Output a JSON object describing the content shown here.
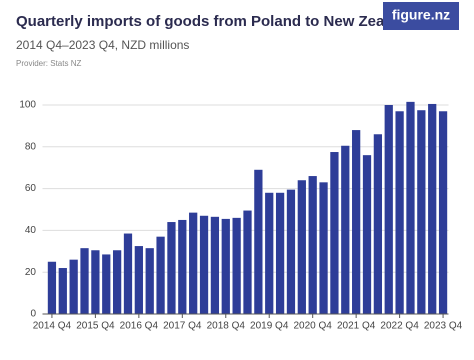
{
  "logo": "figure.nz",
  "chart_data": {
    "type": "bar",
    "title": "Quarterly imports of goods from Poland to New Zealand",
    "subtitle": "2014 Q4–2023 Q4, NZD millions",
    "provider": "Provider: Stats NZ",
    "categories": [
      "2014 Q4",
      null,
      null,
      null,
      "2015 Q4",
      null,
      null,
      null,
      "2016 Q4",
      null,
      null,
      null,
      "2017 Q4",
      null,
      null,
      null,
      "2018 Q4",
      null,
      null,
      null,
      "2019 Q4",
      null,
      null,
      null,
      "2020 Q4",
      null,
      null,
      null,
      "2021 Q4",
      null,
      null,
      null,
      "2022 Q4",
      null,
      null,
      null,
      "2023 Q4"
    ],
    "values": [
      25,
      22,
      26,
      31.5,
      30.5,
      28.5,
      30.5,
      38.5,
      32.5,
      31.5,
      37,
      44,
      45,
      48.5,
      47,
      46.5,
      45.5,
      46,
      49.5,
      69,
      58,
      58,
      59.5,
      64,
      66,
      63,
      77.5,
      80.5,
      88,
      76,
      86,
      100,
      97,
      101.5,
      97.5,
      100.5,
      97
    ],
    "color": "#2e3d98",
    "ylim": [
      0,
      105
    ],
    "yticks": [
      0,
      20,
      40,
      60,
      80,
      100
    ],
    "grid": true
  }
}
